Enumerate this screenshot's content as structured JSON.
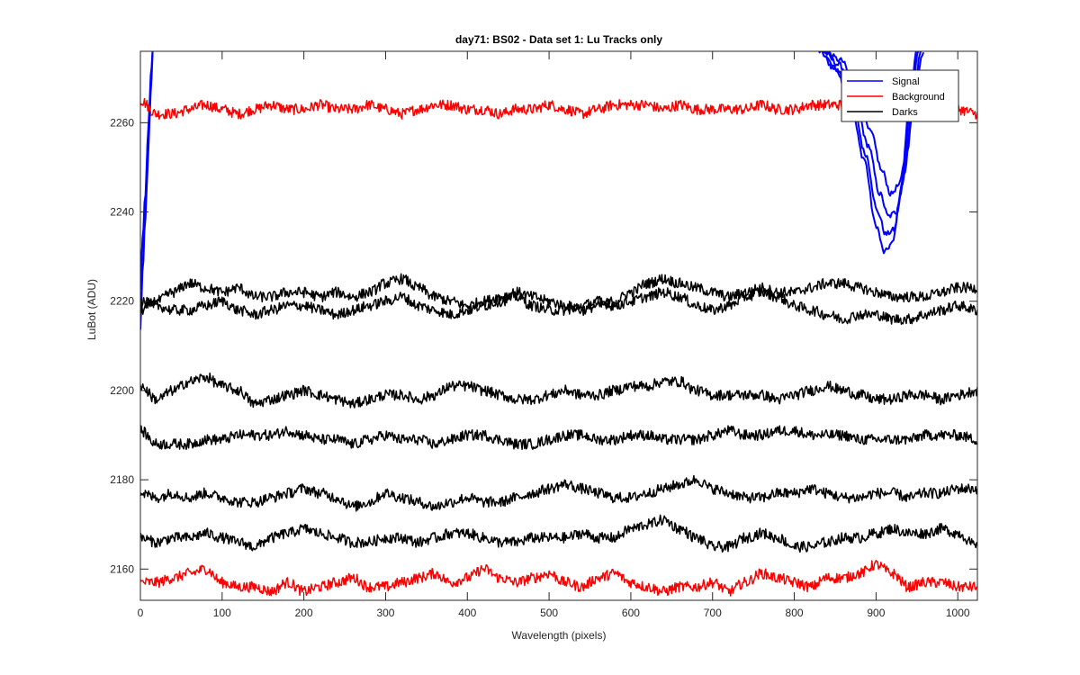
{
  "chart_data": {
    "type": "line",
    "title": "day71: BS02 - Data set 1: Lu Tracks only",
    "xlabel": "Wavelength (pixels)",
    "ylabel": "LuBot (ADU)",
    "xlim": [
      0,
      1024
    ],
    "ylim": [
      2153,
      2276
    ],
    "xticks": [
      0,
      100,
      200,
      300,
      400,
      500,
      600,
      700,
      800,
      900,
      1000
    ],
    "yticks": [
      2160,
      2180,
      2200,
      2220,
      2240,
      2260
    ],
    "grid": false,
    "legend": {
      "placement": "top-right",
      "entries": [
        {
          "label": "Signal",
          "color": "#0000ff"
        },
        {
          "label": "Background",
          "color": "#ff0000"
        },
        {
          "label": "Darks",
          "color": "#000000"
        }
      ]
    },
    "series": [
      {
        "group": "Signal",
        "color": "#0000ff",
        "x": [
          0,
          3,
          6,
          9,
          11,
          13,
          15
        ],
        "y": [
          2228,
          2233,
          2242,
          2255,
          2262,
          2270,
          2276
        ]
      },
      {
        "group": "Signal",
        "color": "#0000ff",
        "x": [
          0,
          3,
          6,
          9,
          11,
          13,
          15
        ],
        "y": [
          2214,
          2228,
          2238,
          2250,
          2260,
          2268,
          2276
        ]
      },
      {
        "group": "Signal",
        "color": "#0000ff",
        "x": [
          0,
          3,
          6,
          9,
          11,
          13,
          15
        ],
        "y": [
          2222,
          2235,
          2244,
          2256,
          2264,
          2271,
          2276
        ]
      },
      {
        "group": "Signal",
        "color": "#0000ff",
        "x": [
          830,
          850,
          870,
          885,
          900,
          910,
          920,
          930,
          940,
          950
        ],
        "y": [
          2276,
          2272,
          2263,
          2252,
          2237,
          2231,
          2233,
          2244,
          2262,
          2276
        ]
      },
      {
        "group": "Signal",
        "color": "#0000ff",
        "x": [
          832,
          852,
          872,
          887,
          902,
          912,
          922,
          932,
          942,
          952
        ],
        "y": [
          2276,
          2272,
          2264,
          2253,
          2240,
          2235,
          2236,
          2246,
          2263,
          2276
        ]
      },
      {
        "group": "Signal",
        "color": "#0000ff",
        "x": [
          834,
          855,
          875,
          890,
          905,
          915,
          925,
          935,
          945,
          955
        ],
        "y": [
          2276,
          2273,
          2265,
          2255,
          2244,
          2239,
          2240,
          2249,
          2265,
          2276
        ]
      },
      {
        "group": "Signal",
        "color": "#0000ff",
        "x": [
          836,
          857,
          878,
          893,
          908,
          918,
          928,
          938,
          948,
          958
        ],
        "y": [
          2276,
          2274,
          2266,
          2258,
          2249,
          2244,
          2246,
          2254,
          2268,
          2276
        ]
      },
      {
        "group": "Background",
        "color": "#ff0000",
        "x": [
          0,
          20,
          40,
          60,
          80,
          100,
          120,
          140,
          160,
          180,
          200,
          220,
          240,
          260,
          280,
          300,
          320,
          340,
          360,
          380,
          400,
          420,
          440,
          460,
          480,
          500,
          520,
          540,
          560,
          580,
          600,
          620,
          640,
          660,
          680,
          700,
          720,
          740,
          760,
          780,
          800,
          820,
          840,
          860,
          880,
          900,
          920,
          940,
          960,
          980,
          1000,
          1024
        ],
        "y": [
          2265,
          2262,
          2262,
          2263,
          2264,
          2263,
          2262,
          2263,
          2264,
          2263,
          2263,
          2264,
          2263,
          2263,
          2264,
          2263,
          2262,
          2263,
          2264,
          2264,
          2263,
          2263,
          2262,
          2263,
          2263,
          2264,
          2263,
          2262,
          2263,
          2264,
          2264,
          2264,
          2263,
          2264,
          2263,
          2263,
          2263,
          2263,
          2264,
          2263,
          2263,
          2264,
          2264,
          2264,
          2265,
          2263,
          2262,
          2263,
          2263,
          2262,
          2263,
          2262
        ]
      },
      {
        "group": "Background",
        "color": "#ff0000",
        "x": [
          0,
          20,
          40,
          60,
          80,
          100,
          120,
          140,
          160,
          180,
          200,
          220,
          240,
          260,
          280,
          300,
          320,
          340,
          360,
          380,
          400,
          420,
          440,
          460,
          480,
          500,
          520,
          540,
          560,
          580,
          600,
          620,
          640,
          660,
          680,
          700,
          720,
          740,
          760,
          780,
          800,
          820,
          840,
          860,
          880,
          900,
          920,
          940,
          960,
          980,
          1000,
          1024
        ],
        "y": [
          2157,
          2157,
          2158,
          2159,
          2160,
          2157,
          2156,
          2156,
          2155,
          2157,
          2155,
          2156,
          2157,
          2158,
          2156,
          2156,
          2157,
          2158,
          2159,
          2157,
          2158,
          2160,
          2158,
          2157,
          2158,
          2159,
          2157,
          2156,
          2158,
          2159,
          2157,
          2156,
          2155,
          2156,
          2156,
          2157,
          2155,
          2157,
          2159,
          2158,
          2157,
          2156,
          2158,
          2158,
          2159,
          2161,
          2159,
          2156,
          2157,
          2157,
          2156,
          2156
        ]
      },
      {
        "group": "Darks",
        "color": "#000000",
        "x": [
          0,
          20,
          40,
          60,
          80,
          100,
          120,
          140,
          160,
          180,
          200,
          220,
          240,
          260,
          280,
          300,
          320,
          340,
          360,
          380,
          400,
          420,
          440,
          460,
          480,
          500,
          520,
          540,
          560,
          580,
          600,
          620,
          640,
          660,
          680,
          700,
          720,
          740,
          760,
          780,
          800,
          820,
          840,
          860,
          880,
          900,
          920,
          940,
          960,
          980,
          1000,
          1024
        ],
        "y": [
          2218,
          2220,
          2222,
          2224,
          2223,
          2222,
          2223,
          2221,
          2221,
          2222,
          2222,
          2221,
          2222,
          2221,
          2222,
          2224,
          2225,
          2223,
          2221,
          2220,
          2219,
          2220,
          2221,
          2222,
          2221,
          2220,
          2219,
          2218,
          2219,
          2220,
          2222,
          2224,
          2225,
          2224,
          2223,
          2222,
          2221,
          2222,
          2223,
          2222,
          2222,
          2223,
          2224,
          2224,
          2223,
          2222,
          2221,
          2221,
          2221,
          2222,
          2223,
          2223
        ]
      },
      {
        "group": "Darks",
        "color": "#000000",
        "x": [
          0,
          20,
          40,
          60,
          80,
          100,
          120,
          140,
          160,
          180,
          200,
          220,
          240,
          260,
          280,
          300,
          320,
          340,
          360,
          380,
          400,
          420,
          440,
          460,
          480,
          500,
          520,
          540,
          560,
          580,
          600,
          620,
          640,
          660,
          680,
          700,
          720,
          740,
          760,
          780,
          800,
          820,
          840,
          860,
          880,
          900,
          920,
          940,
          960,
          980,
          1000,
          1024
        ],
        "y": [
          2220,
          2219,
          2218,
          2218,
          2219,
          2220,
          2218,
          2217,
          2218,
          2219,
          2219,
          2218,
          2217,
          2218,
          2219,
          2220,
          2221,
          2219,
          2218,
          2217,
          2218,
          2219,
          2220,
          2221,
          2219,
          2218,
          2218,
          2219,
          2220,
          2219,
          2220,
          2221,
          2222,
          2221,
          2219,
          2218,
          2219,
          2221,
          2222,
          2221,
          2219,
          2218,
          2217,
          2216,
          2217,
          2217,
          2216,
          2216,
          2217,
          2218,
          2219,
          2218
        ]
      },
      {
        "group": "Darks",
        "color": "#000000",
        "x": [
          0,
          20,
          40,
          60,
          80,
          100,
          120,
          140,
          160,
          180,
          200,
          220,
          240,
          260,
          280,
          300,
          320,
          340,
          360,
          380,
          400,
          420,
          440,
          460,
          480,
          500,
          520,
          540,
          560,
          580,
          600,
          620,
          640,
          660,
          680,
          700,
          720,
          740,
          760,
          780,
          800,
          820,
          840,
          860,
          880,
          900,
          920,
          940,
          960,
          980,
          1000,
          1024
        ],
        "y": [
          2201,
          2198,
          2200,
          2202,
          2203,
          2201,
          2200,
          2197,
          2198,
          2199,
          2200,
          2199,
          2198,
          2197,
          2198,
          2199,
          2199,
          2198,
          2199,
          2201,
          2201,
          2200,
          2199,
          2198,
          2198,
          2199,
          2200,
          2199,
          2199,
          2200,
          2201,
          2201,
          2202,
          2202,
          2200,
          2199,
          2199,
          2199,
          2199,
          2198,
          2199,
          2200,
          2201,
          2200,
          2199,
          2198,
          2198,
          2199,
          2199,
          2198,
          2199,
          2200
        ]
      },
      {
        "group": "Darks",
        "color": "#000000",
        "x": [
          0,
          20,
          40,
          60,
          80,
          100,
          120,
          140,
          160,
          180,
          200,
          220,
          240,
          260,
          280,
          300,
          320,
          340,
          360,
          380,
          400,
          420,
          440,
          460,
          480,
          500,
          520,
          540,
          560,
          580,
          600,
          620,
          640,
          660,
          680,
          700,
          720,
          740,
          760,
          780,
          800,
          820,
          840,
          860,
          880,
          900,
          920,
          940,
          960,
          980,
          1000,
          1024
        ],
        "y": [
          2191,
          2188,
          2188,
          2188,
          2189,
          2189,
          2190,
          2190,
          2190,
          2191,
          2190,
          2189,
          2189,
          2188,
          2189,
          2190,
          2189,
          2189,
          2188,
          2189,
          2190,
          2190,
          2189,
          2188,
          2188,
          2189,
          2190,
          2190,
          2189,
          2189,
          2190,
          2190,
          2189,
          2189,
          2189,
          2190,
          2191,
          2190,
          2190,
          2191,
          2191,
          2190,
          2190,
          2190,
          2189,
          2189,
          2189,
          2189,
          2190,
          2190,
          2190,
          2189
        ]
      },
      {
        "group": "Darks",
        "color": "#000000",
        "x": [
          0,
          20,
          40,
          60,
          80,
          100,
          120,
          140,
          160,
          180,
          200,
          220,
          240,
          260,
          280,
          300,
          320,
          340,
          360,
          380,
          400,
          420,
          440,
          460,
          480,
          500,
          520,
          540,
          560,
          580,
          600,
          620,
          640,
          660,
          680,
          700,
          720,
          740,
          760,
          780,
          800,
          820,
          840,
          860,
          880,
          900,
          920,
          940,
          960,
          980,
          1000,
          1024
        ],
        "y": [
          2177,
          2176,
          2177,
          2176,
          2177,
          2176,
          2175,
          2175,
          2176,
          2177,
          2178,
          2177,
          2176,
          2174,
          2175,
          2177,
          2176,
          2175,
          2174,
          2175,
          2176,
          2175,
          2175,
          2176,
          2177,
          2178,
          2179,
          2178,
          2177,
          2176,
          2176,
          2177,
          2178,
          2179,
          2180,
          2178,
          2177,
          2176,
          2176,
          2177,
          2177,
          2178,
          2177,
          2176,
          2176,
          2177,
          2177,
          2176,
          2177,
          2177,
          2178,
          2178
        ]
      },
      {
        "group": "Darks",
        "color": "#000000",
        "x": [
          0,
          20,
          40,
          60,
          80,
          100,
          120,
          140,
          160,
          180,
          200,
          220,
          240,
          260,
          280,
          300,
          320,
          340,
          360,
          380,
          400,
          420,
          440,
          460,
          480,
          500,
          520,
          540,
          560,
          580,
          600,
          620,
          640,
          660,
          680,
          700,
          720,
          740,
          760,
          780,
          800,
          820,
          840,
          860,
          880,
          900,
          920,
          940,
          960,
          980,
          1000,
          1024
        ],
        "y": [
          2167,
          2166,
          2167,
          2167,
          2168,
          2167,
          2166,
          2165,
          2167,
          2168,
          2169,
          2168,
          2167,
          2166,
          2166,
          2167,
          2167,
          2166,
          2167,
          2168,
          2168,
          2167,
          2166,
          2166,
          2167,
          2167,
          2167,
          2168,
          2167,
          2167,
          2169,
          2170,
          2171,
          2169,
          2167,
          2165,
          2165,
          2167,
          2168,
          2167,
          2165,
          2165,
          2166,
          2167,
          2167,
          2168,
          2169,
          2168,
          2168,
          2169,
          2168,
          2165
        ]
      }
    ]
  }
}
